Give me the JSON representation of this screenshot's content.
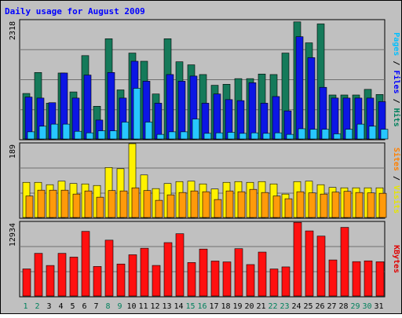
{
  "chart_data": {
    "type": "bar",
    "title": "Daily usage for August 2009",
    "categories": [
      "1",
      "2",
      "3",
      "4",
      "5",
      "6",
      "7",
      "8",
      "9",
      "10",
      "11",
      "12",
      "13",
      "14",
      "15",
      "16",
      "17",
      "18",
      "19",
      "20",
      "21",
      "22",
      "23",
      "24",
      "25",
      "26",
      "27",
      "28",
      "29",
      "30",
      "31"
    ],
    "weekend_days": [
      "1",
      "2",
      "8",
      "9",
      "15",
      "16",
      "22",
      "23",
      "29",
      "30"
    ],
    "panels": [
      {
        "id": "hits",
        "ymax": 2318,
        "ymax_label": "2318",
        "label_parts": [
          {
            "text": "Pages",
            "color": "#00c0ff"
          },
          {
            "text": " / ",
            "color": "#000000"
          },
          {
            "text": "Files",
            "color": "#0000ff"
          },
          {
            "text": " / ",
            "color": "#000000"
          },
          {
            "text": "Hits",
            "color": "#00805c"
          }
        ],
        "series": [
          {
            "key": "hits",
            "color": "#157a5a",
            "values": [
              890,
              1300,
              700,
              1290,
              920,
              1630,
              640,
              1960,
              960,
              1680,
              1520,
              880,
              1960,
              1510,
              1450,
              1260,
              1050,
              1070,
              1180,
              1180,
              1270,
              1260,
              1680,
              2290,
              1880,
              2250,
              860,
              860,
              860,
              970,
              870
            ]
          },
          {
            "key": "files",
            "color": "#0c16e4",
            "values": [
              820,
              800,
              710,
              1290,
              800,
              1250,
              370,
              1300,
              800,
              1520,
              1130,
              700,
              1260,
              1130,
              1230,
              700,
              880,
              770,
              750,
              1100,
              700,
              830,
              550,
              2000,
              1590,
              1010,
              800,
              800,
              800,
              800,
              730
            ]
          },
          {
            "key": "pages",
            "color": "#27c7ff",
            "values": [
              140,
              250,
              290,
              290,
              150,
              120,
              160,
              160,
              330,
              990,
              330,
              90,
              140,
              140,
              390,
              110,
              120,
              130,
              110,
              120,
              110,
              120,
              90,
              200,
              190,
              190,
              100,
              190,
              290,
              250,
              190
            ]
          }
        ]
      },
      {
        "id": "visits",
        "ymax": 189,
        "ymax_label": "189",
        "label_parts": [
          {
            "text": "Sites",
            "color": "#ff8000"
          },
          {
            "text": " / ",
            "color": "#000000"
          },
          {
            "text": "Visits",
            "color": "#e6e600"
          }
        ],
        "series": [
          {
            "key": "visits",
            "color": "#fff200",
            "values": [
              90,
              90,
              84,
              93,
              87,
              86,
              82,
              128,
              125,
              189,
              109,
              74,
              87,
              92,
              93,
              86,
              73,
              90,
              92,
              90,
              92,
              86,
              60,
              92,
              93,
              84,
              77,
              76,
              76,
              76,
              76
            ]
          },
          {
            "key": "sites",
            "color": "#ff9a0a",
            "values": [
              55,
              70,
              70,
              70,
              60,
              68,
              52,
              69,
              68,
              76,
              69,
              44,
              58,
              64,
              68,
              66,
              46,
              68,
              66,
              72,
              64,
              55,
              48,
              66,
              63,
              60,
              65,
              67,
              64,
              63,
              62
            ]
          }
        ]
      },
      {
        "id": "kbytes",
        "ymax": 12934,
        "ymax_label": "12934",
        "label_parts": [
          {
            "text": "KBytes",
            "color": "#e00000"
          }
        ],
        "series": [
          {
            "key": "kbytes",
            "color": "#ff1010",
            "values": [
              4750,
              7480,
              5350,
              7480,
              6820,
              11330,
              5180,
              9790,
              5610,
              7230,
              8370,
              5360,
              9360,
              10920,
              5870,
              8230,
              6130,
              5980,
              8300,
              5510,
              7700,
              4740,
              5100,
              12900,
              11410,
              10500,
              6320,
              12030,
              6030,
              6160,
              6000
            ]
          }
        ]
      }
    ]
  }
}
